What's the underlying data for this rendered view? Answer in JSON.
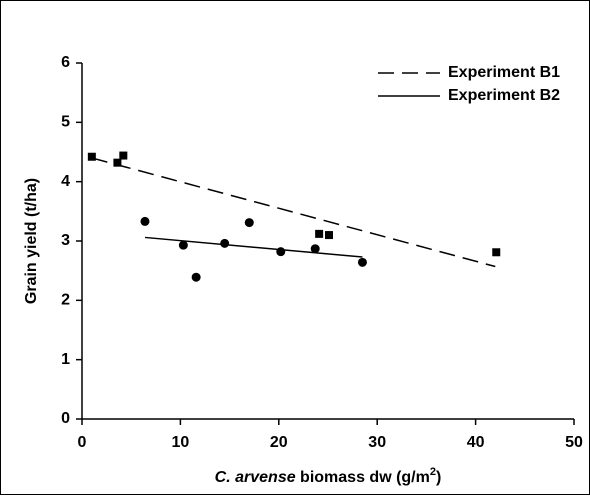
{
  "chart_data": {
    "type": "scatter",
    "xlabel": [
      "C. arvense",
      " biomass dw (g/m",
      "2",
      ")"
    ],
    "ylabel": "Grain yield (t/ha)",
    "xlim": [
      0,
      50
    ],
    "xticks": [
      0,
      10,
      20,
      30,
      40,
      50
    ],
    "ylim": [
      0,
      6
    ],
    "yticks": [
      0,
      1,
      2,
      3,
      4,
      5,
      6
    ],
    "grid": false,
    "legend": "upper right",
    "series": [
      {
        "marker": "square",
        "color": "#000000",
        "x": [
          1,
          3.6,
          4.2,
          24.1,
          25.1,
          42.1
        ],
        "values": [
          4.42,
          4.32,
          4.44,
          3.12,
          3.1,
          2.81
        ]
      },
      {
        "marker": "circle",
        "color": "#000000",
        "x": [
          6.4,
          10.3,
          11.6,
          14.5,
          17,
          20.2,
          23.7,
          28.5
        ],
        "values": [
          3.33,
          2.93,
          2.39,
          2.96,
          3.31,
          2.82,
          2.87,
          2.64
        ]
      }
    ],
    "trendlines": [
      {
        "name": "Experiment B1",
        "dash": true,
        "color": "#000000",
        "x": [
          1,
          42
        ],
        "values": [
          4.4,
          2.57
        ]
      },
      {
        "name": "Experiment B2",
        "dash": false,
        "color": "#000000",
        "x": [
          6.4,
          28.5
        ],
        "values": [
          3.06,
          2.73
        ]
      }
    ]
  }
}
